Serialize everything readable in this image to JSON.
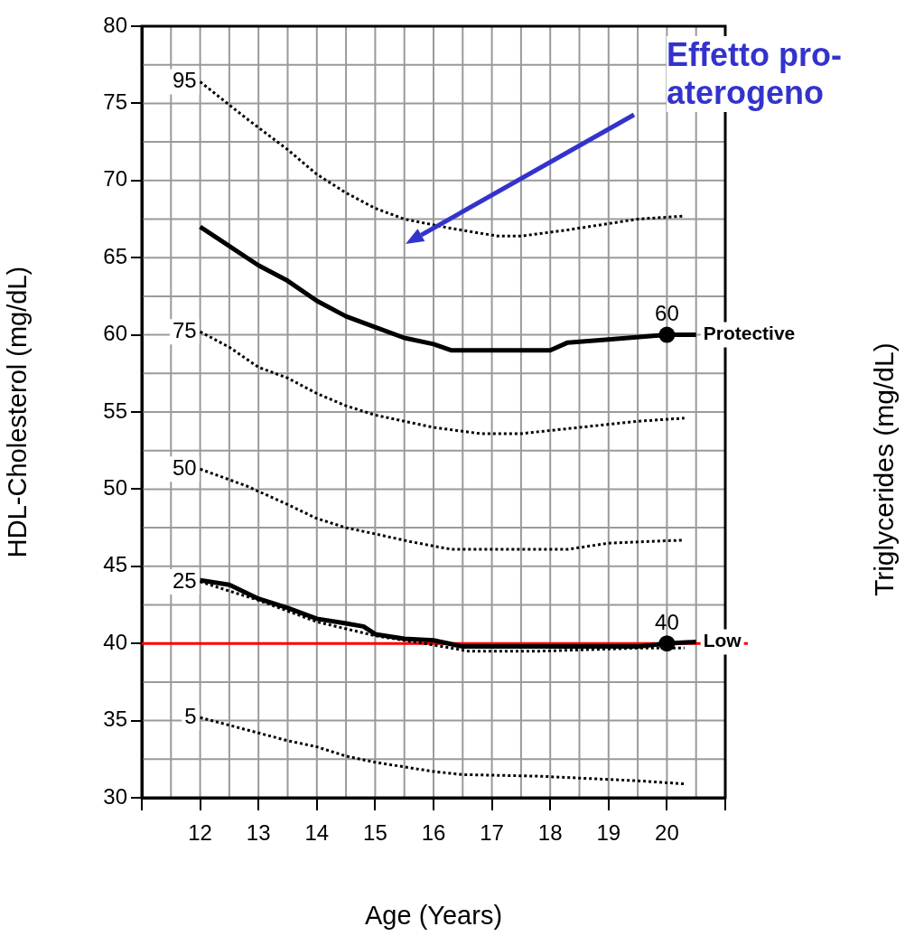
{
  "chart_data": {
    "type": "line",
    "xlabel": "Age (Years)",
    "ylabel": "HDL-Cholesterol (mg/dL)",
    "xlim": [
      11,
      21
    ],
    "xticks": [
      {
        "value": 11,
        "label": null
      },
      12,
      13,
      14,
      15,
      16,
      17,
      18,
      19,
      20,
      {
        "value": 21,
        "label": null
      }
    ],
    "ylim": [
      30,
      80
    ],
    "yticks": [
      30,
      35,
      40,
      45,
      50,
      55,
      60,
      65,
      70,
      75,
      80
    ],
    "grid": true,
    "legend": false,
    "series": [
      {
        "name": "95",
        "color": "#000000",
        "line_style": "dotted",
        "marker": "none",
        "x": [
          12,
          12.8,
          13.5,
          14,
          14.5,
          15,
          15.5,
          16.3,
          17.1,
          17.5,
          18.3,
          19.5,
          20.3
        ],
        "values": [
          76.4,
          74,
          72,
          70.4,
          69.2,
          68.2,
          67.5,
          66.9,
          66.4,
          66.4,
          66.8,
          67.5,
          67.7
        ]
      },
      {
        "name": "75",
        "color": "#000000",
        "line_style": "dotted",
        "marker": "none",
        "x": [
          12,
          12.5,
          13,
          13.5,
          14,
          14.5,
          15,
          16,
          16.8,
          17.5,
          18.5,
          19.5,
          20.3
        ],
        "values": [
          60.2,
          59.2,
          57.9,
          57.2,
          56.2,
          55.4,
          54.8,
          54,
          53.6,
          53.6,
          54,
          54.4,
          54.6
        ]
      },
      {
        "name": "50",
        "color": "#000000",
        "line_style": "dotted",
        "marker": "none",
        "x": [
          12,
          12.8,
          13.5,
          14,
          14.5,
          15,
          15.6,
          16.3,
          18.3,
          19,
          20.3
        ],
        "values": [
          51.3,
          50.2,
          49,
          48.1,
          47.5,
          47.1,
          46.6,
          46.1,
          46.1,
          46.5,
          46.7
        ]
      },
      {
        "name": "25",
        "color": "#000000",
        "line_style": "dotted",
        "marker": "none",
        "x": [
          12,
          13,
          14,
          15,
          16,
          16.6,
          17.8,
          19.5,
          20.3
        ],
        "values": [
          44,
          42.8,
          41.4,
          40.5,
          39.9,
          39.5,
          39.5,
          39.7,
          39.7
        ]
      },
      {
        "name": "5",
        "color": "#000000",
        "line_style": "dotted",
        "marker": "none",
        "x": [
          12,
          13,
          13.5,
          14,
          14.5,
          15,
          16,
          16.5,
          17.8,
          19.5,
          20.3
        ],
        "values": [
          35.2,
          34.2,
          33.7,
          33.3,
          32.7,
          32.3,
          31.7,
          31.5,
          31.4,
          31.1,
          30.9
        ]
      },
      {
        "name": "Protective",
        "color": "#000000",
        "line_style": "solid",
        "marker": "none",
        "x": [
          12,
          13,
          13.5,
          14,
          14.5,
          15,
          15.5,
          16,
          16.3,
          18,
          18.3,
          19,
          20,
          20.5
        ],
        "values": [
          67,
          64.5,
          63.5,
          62.2,
          61.2,
          60.5,
          59.8,
          59.4,
          59,
          59,
          59.5,
          59.7,
          60,
          60
        ]
      },
      {
        "name": "Low",
        "color": "#000000",
        "line_style": "solid",
        "marker": "none",
        "x": [
          12,
          12.5,
          13,
          13.5,
          14,
          14.5,
          14.8,
          15,
          15.5,
          16,
          16.5,
          19.5,
          20,
          20.5
        ],
        "values": [
          44.1,
          43.8,
          42.9,
          42.3,
          41.6,
          41.3,
          41.1,
          40.6,
          40.3,
          40.2,
          39.8,
          39.8,
          40,
          40.1
        ]
      },
      {
        "type": "scatter",
        "color": "#000000",
        "marker": "circle",
        "x": [
          20
        ],
        "values": [
          60
        ],
        "value_labels": [
          "60"
        ]
      },
      {
        "type": "scatter",
        "color": "#000000",
        "marker": "circle",
        "x": [
          20
        ],
        "values": [
          40
        ],
        "value_labels": [
          "40"
        ]
      }
    ],
    "ref_lines": [
      {
        "axis": "y",
        "value": 40,
        "color": "#ff0000"
      }
    ],
    "annotations": [
      "Effetto pro-aterogeno",
      "Triglycerides (mg/dL)"
    ]
  }
}
